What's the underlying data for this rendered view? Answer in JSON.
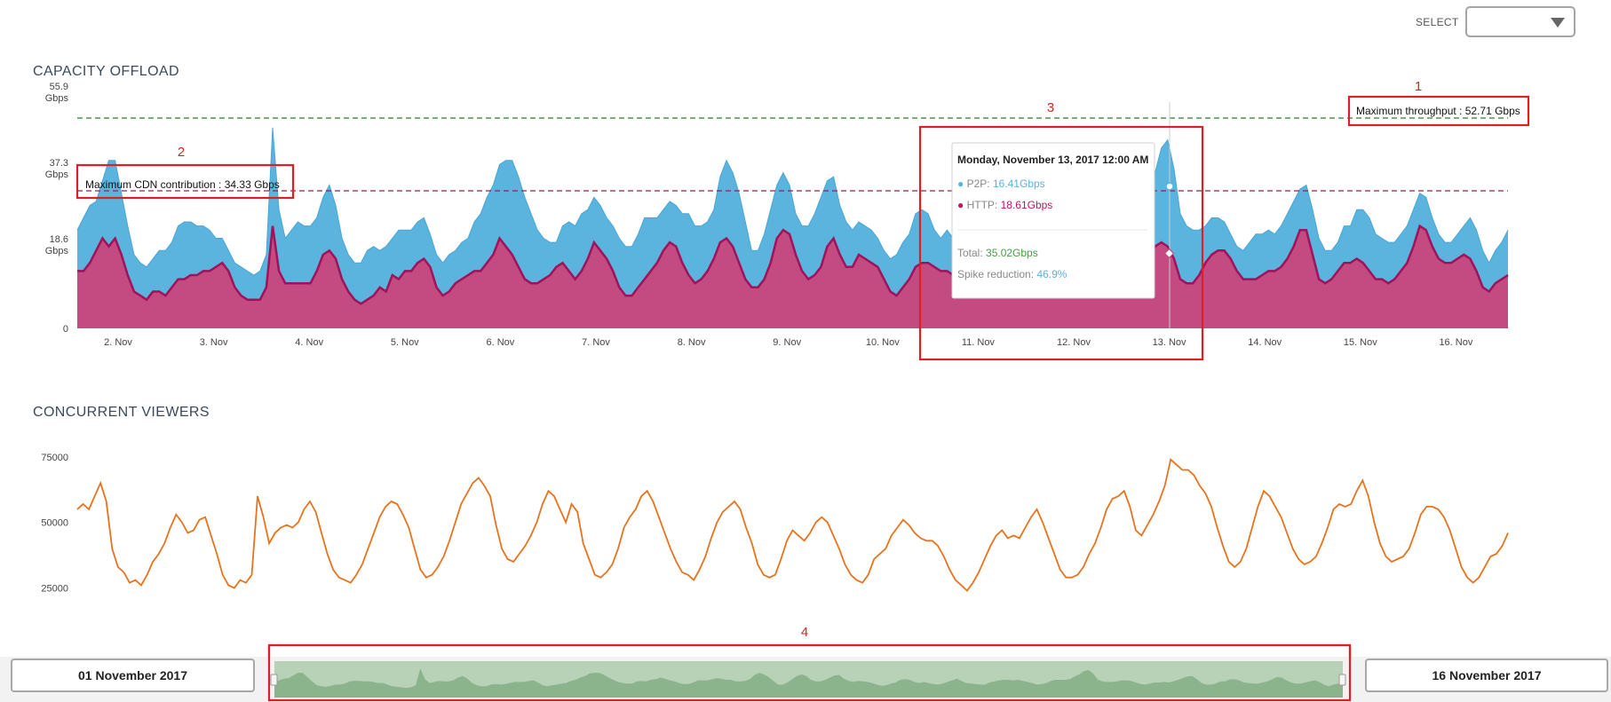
{
  "header": {
    "select_label": "SELECT",
    "select_value": ""
  },
  "capacity": {
    "title": "CAPACITY OFFLOAD",
    "y_ticks": [
      {
        "value": 55.9,
        "lines": [
          "55.9",
          "Gbps"
        ]
      },
      {
        "value": 37.3,
        "lines": [
          "37.3",
          "Gbps"
        ]
      },
      {
        "value": 18.6,
        "lines": [
          "18.6",
          "Gbps"
        ]
      },
      {
        "value": 0,
        "lines": [
          "0"
        ]
      }
    ],
    "x_labels": [
      "2. Nov",
      "3. Nov",
      "4. Nov",
      "5. Nov",
      "6. Nov",
      "7. Nov",
      "8. Nov",
      "9. Nov",
      "10. Nov",
      "11. Nov",
      "12. Nov",
      "13. Nov",
      "14. Nov",
      "15. Nov",
      "16. Nov"
    ],
    "max_throughput_label": "Maximum throughput : 52.71 Gbps",
    "max_cdn_label": "Maximum CDN contribution : 34.33 Gbps",
    "tooltip": {
      "date": "Monday, November 13, 2017 12:00 AM",
      "p2p_name": "P2P: ",
      "p2p_value": "16.41Gbps",
      "http_name": "HTTP: ",
      "http_value": "18.61Gbps",
      "total_name": "Total: ",
      "total_value": "35.02Gbps",
      "spike_name": "Spike reduction: ",
      "spike_value": "46.9%"
    }
  },
  "viewers": {
    "title": "CONCURRENT VIEWERS",
    "y_ticks": [
      "75000",
      "50000",
      "25000"
    ]
  },
  "annotations": [
    "1",
    "2",
    "3",
    "4"
  ],
  "navigator": {
    "start_date": "01 November 2017",
    "end_date": "16 November 2017"
  },
  "colors": {
    "p2p": "#5ab4de",
    "http": "#c44a82",
    "viewers": "#e8731e",
    "navigator": "#8cb48c",
    "annotation": "#e02020"
  },
  "chart_data": [
    {
      "type": "area",
      "title": "CAPACITY OFFLOAD",
      "stacked": true,
      "ylabel": "Gbps",
      "ylim": [
        0,
        55.9
      ],
      "x_start_day": 1.6,
      "x_step_days": 0.1,
      "series": [
        {
          "name": "HTTP",
          "values": [
            14,
            14,
            16,
            19,
            22,
            20,
            22,
            18,
            13,
            9,
            8,
            7,
            9,
            9,
            8,
            10,
            12,
            12,
            13,
            13,
            14,
            14,
            15,
            16,
            14,
            10,
            8,
            7,
            7,
            7,
            10,
            25,
            14,
            11,
            11,
            11,
            11,
            11,
            14,
            18,
            19,
            17,
            12,
            9,
            7,
            6,
            7,
            8,
            10,
            9,
            13,
            12,
            14,
            14,
            16,
            17,
            15,
            10,
            8,
            9,
            11,
            12,
            13,
            14,
            14,
            16,
            18,
            22,
            20,
            18,
            15,
            12,
            11,
            11,
            12,
            13,
            15,
            16,
            14,
            12,
            14,
            17,
            21,
            19,
            17,
            14,
            10,
            8,
            8,
            10,
            12,
            14,
            16,
            19,
            21,
            20,
            16,
            13,
            11,
            12,
            14,
            17,
            21,
            22,
            20,
            16,
            12,
            10,
            10,
            12,
            16,
            22,
            24,
            23,
            18,
            14,
            12,
            13,
            15,
            20,
            22,
            18,
            15,
            15,
            18,
            17,
            16,
            15,
            12,
            9,
            8,
            10,
            12,
            15,
            16,
            16,
            15,
            14,
            14,
            13,
            12,
            11,
            13,
            15,
            17,
            19,
            17,
            15,
            13,
            12,
            11,
            11,
            12,
            13,
            15,
            16,
            17,
            18,
            18,
            17,
            16,
            12,
            11,
            12,
            14,
            18,
            19,
            17,
            16,
            17,
            18,
            20,
            21,
            20,
            17,
            12,
            11,
            11,
            13,
            16,
            18,
            19,
            19,
            17,
            14,
            12,
            12,
            12,
            13,
            14,
            14,
            15,
            17,
            20,
            24,
            24,
            18,
            12,
            11,
            12,
            14,
            16,
            16,
            17,
            16,
            14,
            12,
            12,
            11,
            12,
            14,
            16,
            20,
            25,
            24,
            20,
            17,
            16,
            16,
            17,
            18,
            17,
            14,
            10,
            9,
            11,
            12,
            13
          ]
        },
        {
          "name": "P2P",
          "values": [
            10,
            13,
            14,
            12,
            14,
            21,
            19,
            15,
            12,
            9,
            8,
            8,
            8,
            10,
            11,
            11,
            13,
            14,
            13,
            12,
            11,
            10,
            7,
            6,
            5,
            6,
            7,
            7,
            6,
            7,
            8,
            24,
            15,
            11,
            13,
            15,
            14,
            14,
            13,
            14,
            16,
            13,
            10,
            9,
            9,
            10,
            12,
            12,
            9,
            11,
            9,
            12,
            10,
            10,
            10,
            10,
            8,
            8,
            8,
            9,
            8,
            9,
            9,
            12,
            14,
            16,
            17,
            18,
            21,
            23,
            22,
            20,
            17,
            13,
            10,
            8,
            6,
            9,
            12,
            13,
            14,
            12,
            11,
            11,
            10,
            11,
            12,
            12,
            12,
            13,
            15,
            13,
            11,
            10,
            10,
            10,
            12,
            15,
            14,
            13,
            12,
            12,
            16,
            19,
            18,
            17,
            14,
            9,
            9,
            11,
            13,
            13,
            14,
            12,
            10,
            11,
            13,
            15,
            17,
            16,
            15,
            12,
            11,
            9,
            8,
            8,
            8,
            7,
            7,
            8,
            10,
            11,
            11,
            13,
            13,
            12,
            9,
            8,
            10,
            9,
            8,
            8,
            8,
            9,
            10,
            11,
            9,
            7,
            8,
            8,
            8,
            8,
            11,
            12,
            12,
            12,
            11,
            9,
            10,
            9,
            8,
            10,
            8,
            8,
            8,
            8,
            9,
            11,
            12,
            12,
            16,
            18,
            23,
            26,
            22,
            16,
            14,
            13,
            11,
            9,
            9,
            8,
            7,
            6,
            6,
            7,
            9,
            11,
            10,
            10,
            9,
            10,
            11,
            11,
            10,
            11,
            11,
            10,
            8,
            7,
            7,
            9,
            9,
            12,
            13,
            13,
            11,
            10,
            10,
            9,
            9,
            9,
            9,
            8,
            8,
            7,
            6,
            5,
            5,
            6,
            7,
            10,
            10,
            9,
            7,
            8,
            9,
            11
          ]
        }
      ]
    },
    {
      "type": "line",
      "title": "CONCURRENT VIEWERS",
      "ylim": [
        14000,
        80000
      ],
      "x_start_day": 1.6,
      "x_step_days": 0.1,
      "series": [
        {
          "name": "Concurrent viewers",
          "values": [
            55000,
            57000,
            55000,
            60000,
            65000,
            58000,
            40000,
            33000,
            31000,
            27000,
            28000,
            26000,
            30000,
            35000,
            38000,
            42000,
            48000,
            53000,
            50000,
            46000,
            47000,
            51000,
            52000,
            45000,
            38000,
            30000,
            26000,
            25000,
            28000,
            27000,
            30000,
            60000,
            52000,
            42000,
            46000,
            48000,
            49000,
            48000,
            50000,
            55000,
            58000,
            54000,
            46000,
            38000,
            32000,
            29000,
            28000,
            27000,
            30000,
            34000,
            40000,
            46000,
            52000,
            56000,
            58000,
            57000,
            53000,
            48000,
            40000,
            32000,
            29000,
            30000,
            33000,
            37000,
            43000,
            50000,
            57000,
            61000,
            65000,
            67000,
            64000,
            60000,
            49000,
            40000,
            36000,
            35000,
            38000,
            41000,
            45000,
            50000,
            57000,
            62000,
            60000,
            55000,
            50000,
            57000,
            54000,
            42000,
            36000,
            30000,
            29000,
            31000,
            34000,
            40000,
            48000,
            52000,
            55000,
            60000,
            62000,
            58000,
            52000,
            46000,
            40000,
            35000,
            31000,
            30000,
            28000,
            32000,
            37000,
            44000,
            50000,
            54000,
            56000,
            58000,
            55000,
            48000,
            42000,
            34000,
            30000,
            29000,
            30000,
            36000,
            43000,
            47000,
            45000,
            43000,
            46000,
            50000,
            52000,
            50000,
            45000,
            40000,
            34000,
            30000,
            28000,
            27000,
            30000,
            36000,
            38000,
            40000,
            45000,
            48000,
            51000,
            49000,
            46000,
            44000,
            43000,
            43000,
            41000,
            37000,
            32000,
            28000,
            26000,
            24000,
            27000,
            31000,
            36000,
            41000,
            45000,
            47000,
            44000,
            45000,
            44000,
            48000,
            52000,
            55000,
            50000,
            44000,
            38000,
            32000,
            29000,
            29000,
            30000,
            33000,
            38000,
            42000,
            48000,
            55000,
            59000,
            60000,
            62000,
            56000,
            47000,
            45000,
            49000,
            53000,
            58000,
            64000,
            74000,
            72000,
            70000,
            70000,
            68000,
            64000,
            61000,
            56000,
            48000,
            41000,
            35000,
            33000,
            35000,
            40000,
            48000,
            56000,
            62000,
            60000,
            56000,
            52000,
            46000,
            40000,
            36000,
            34000,
            35000,
            37000,
            42000,
            48000,
            55000,
            57000,
            56000,
            57000,
            62000,
            66000,
            60000,
            50000,
            42000,
            37000,
            35000,
            36000,
            37000,
            40000,
            46000,
            53000,
            56000,
            56000,
            55000,
            52000,
            47000,
            40000,
            33000,
            29000,
            27000,
            29000,
            33000,
            37000,
            38000,
            41000,
            46000
          ]
        }
      ]
    }
  ]
}
